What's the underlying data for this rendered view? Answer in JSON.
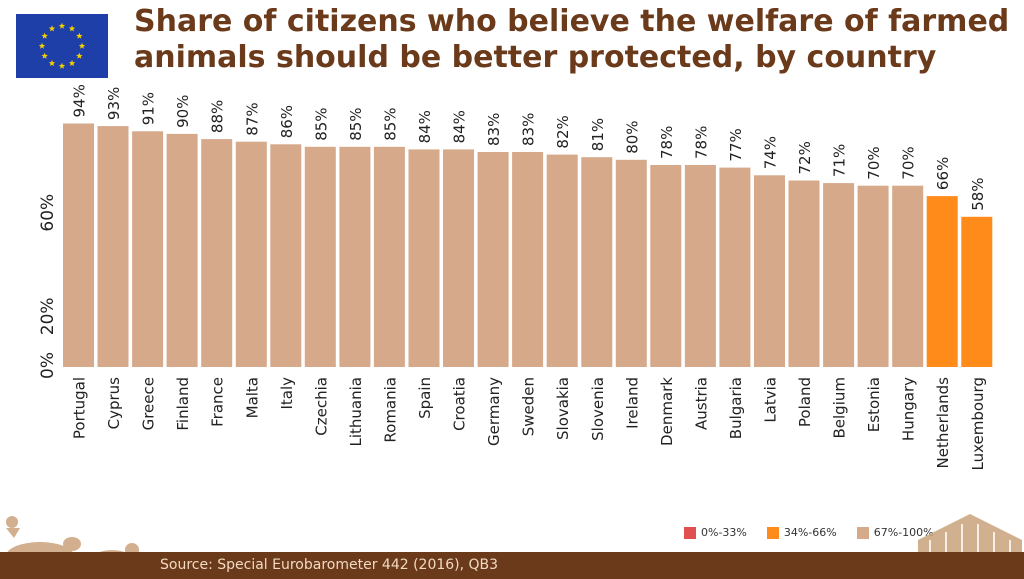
{
  "header": {
    "title": "Share of citizens who believe the welfare of farmed animals should be better protected, by country",
    "flag_icon": "eu-flag-icon"
  },
  "chart_data": {
    "type": "bar",
    "title": "Share of citizens who believe the welfare of farmed animals should be better protected, by country",
    "categories": [
      "Portugal",
      "Cyprus",
      "Greece",
      "Finland",
      "France",
      "Malta",
      "Italy",
      "Czechia",
      "Lithuania",
      "Romania",
      "Spain",
      "Croatia",
      "Germany",
      "Sweden",
      "Slovakia",
      "Slovenia",
      "Ireland",
      "Denmark",
      "Austria",
      "Bulgaria",
      "Latvia",
      "Poland",
      "Belgium",
      "Estonia",
      "Hungary",
      "Netherlands",
      "Luxembourg"
    ],
    "values": [
      94,
      93,
      91,
      90,
      88,
      87,
      86,
      85,
      85,
      85,
      84,
      84,
      83,
      83,
      82,
      81,
      80,
      78,
      78,
      77,
      74,
      72,
      71,
      70,
      70,
      66,
      58
    ],
    "value_labels": [
      "94%",
      "93%",
      "91%",
      "90%",
      "88%",
      "87%",
      "86%",
      "85%",
      "85%",
      "85%",
      "84%",
      "84%",
      "83%",
      "83%",
      "82%",
      "81%",
      "80%",
      "78%",
      "78%",
      "77%",
      "74%",
      "72%",
      "71%",
      "70%",
      "70%",
      "66%",
      "58%"
    ],
    "ylim": [
      0,
      100
    ],
    "yticks": [
      0,
      20,
      60
    ],
    "ytick_labels": [
      "0%",
      "20%",
      "60%"
    ],
    "grid": false,
    "legend_position": "bottom-right",
    "legend": [
      {
        "label": "0%-33%",
        "color": "#e05050"
      },
      {
        "label": "34%-66%",
        "color": "#ff8c1a"
      },
      {
        "label": "67%-100%",
        "color": "#d6a98a"
      }
    ],
    "bar_colors": {
      "high": "#d6a98a",
      "mid": "#ff8c1a",
      "low": "#e05050"
    }
  },
  "footer": {
    "source": "Source: Special Eurobarometer 442 (2016), QB3",
    "bar_color": "#6b3a1a"
  }
}
